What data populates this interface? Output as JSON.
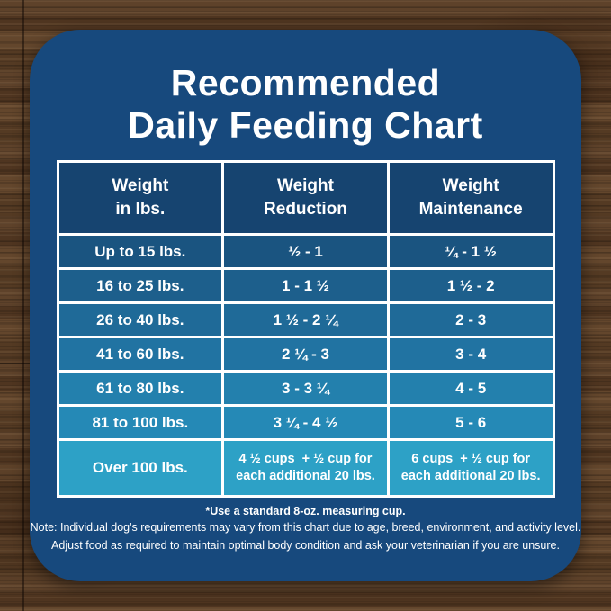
{
  "title": {
    "line1": "Recommended",
    "line2": "Daily Feeding Chart"
  },
  "table": {
    "headers": [
      "Weight\nin lbs.",
      "Weight\nReduction",
      "Weight\nMaintenance"
    ],
    "rows": [
      {
        "weight": "Up to 15 lbs.",
        "reduction": "½ - 1",
        "maintenance": "¼ - 1 ½"
      },
      {
        "weight": "16 to 25 lbs.",
        "reduction": "1 - 1 ½",
        "maintenance": "1 ½ - 2"
      },
      {
        "weight": "26 to 40 lbs.",
        "reduction": "1 ½ - 2 ¼",
        "maintenance": "2 - 3"
      },
      {
        "weight": "41 to 60 lbs.",
        "reduction": "2 ¼ - 3",
        "maintenance": "3 - 4"
      },
      {
        "weight": "61 to 80 lbs.",
        "reduction": "3 - 3 ¼",
        "maintenance": "4 - 5"
      },
      {
        "weight": "81 to 100 lbs.",
        "reduction": "3 ¼ - 4 ½",
        "maintenance": "5 - 6"
      },
      {
        "weight": "Over 100 lbs.",
        "reduction": "4 ½ cups  + ½ cup for\neach additional 20 lbs.",
        "maintenance": "6 cups  + ½ cup for\neach additional 20 lbs."
      }
    ]
  },
  "footer": {
    "measuring_cup_note": "*Use a standard 8-oz. measuring cup.",
    "note_line1": "Note: Individual dog's requirements may vary from this chart due to age, breed, environment, and activity level.",
    "note_line2": "Adjust food as required to maintain optimal body condition and ask your veterinarian if you are unsure."
  },
  "colors": {
    "card_background": "#17497d",
    "header_cell_background": "#164470",
    "table_border": "#ffffff",
    "text": "#ffffff",
    "row_backgrounds": [
      "#1a5480",
      "#1d5f8c",
      "#1f6a98",
      "#2173a2",
      "#2380ad",
      "#2589b6",
      "#2da1c6"
    ]
  },
  "chart_data": {
    "type": "table",
    "title": "Recommended Daily Feeding Chart",
    "columns": [
      "Weight in lbs.",
      "Weight Reduction",
      "Weight Maintenance"
    ],
    "units": "cups per day (standard 8-oz. measuring cup)",
    "rows": [
      [
        "Up to 15 lbs.",
        "½ - 1",
        "¼ - 1 ½"
      ],
      [
        "16 to 25 lbs.",
        "1 - 1 ½",
        "1 ½ - 2"
      ],
      [
        "26 to 40 lbs.",
        "1 ½ - 2 ¼",
        "2 - 3"
      ],
      [
        "41 to 60 lbs.",
        "2 ¼ - 3",
        "3 - 4"
      ],
      [
        "61 to 80 lbs.",
        "3 - 3 ¼",
        "4 - 5"
      ],
      [
        "81 to 100 lbs.",
        "3 ¼ - 4 ½",
        "5 - 6"
      ],
      [
        "Over 100 lbs.",
        "4 ½ cups + ½ cup for each additional 20 lbs.",
        "6 cups + ½ cup for each additional 20 lbs."
      ]
    ],
    "footnotes": [
      "*Use a standard 8-oz. measuring cup.",
      "Note: Individual dog's requirements may vary from this chart due to age, breed, environment, and activity level.",
      "Adjust food as required to maintain optimal body condition and ask your veterinarian if you are unsure."
    ]
  }
}
